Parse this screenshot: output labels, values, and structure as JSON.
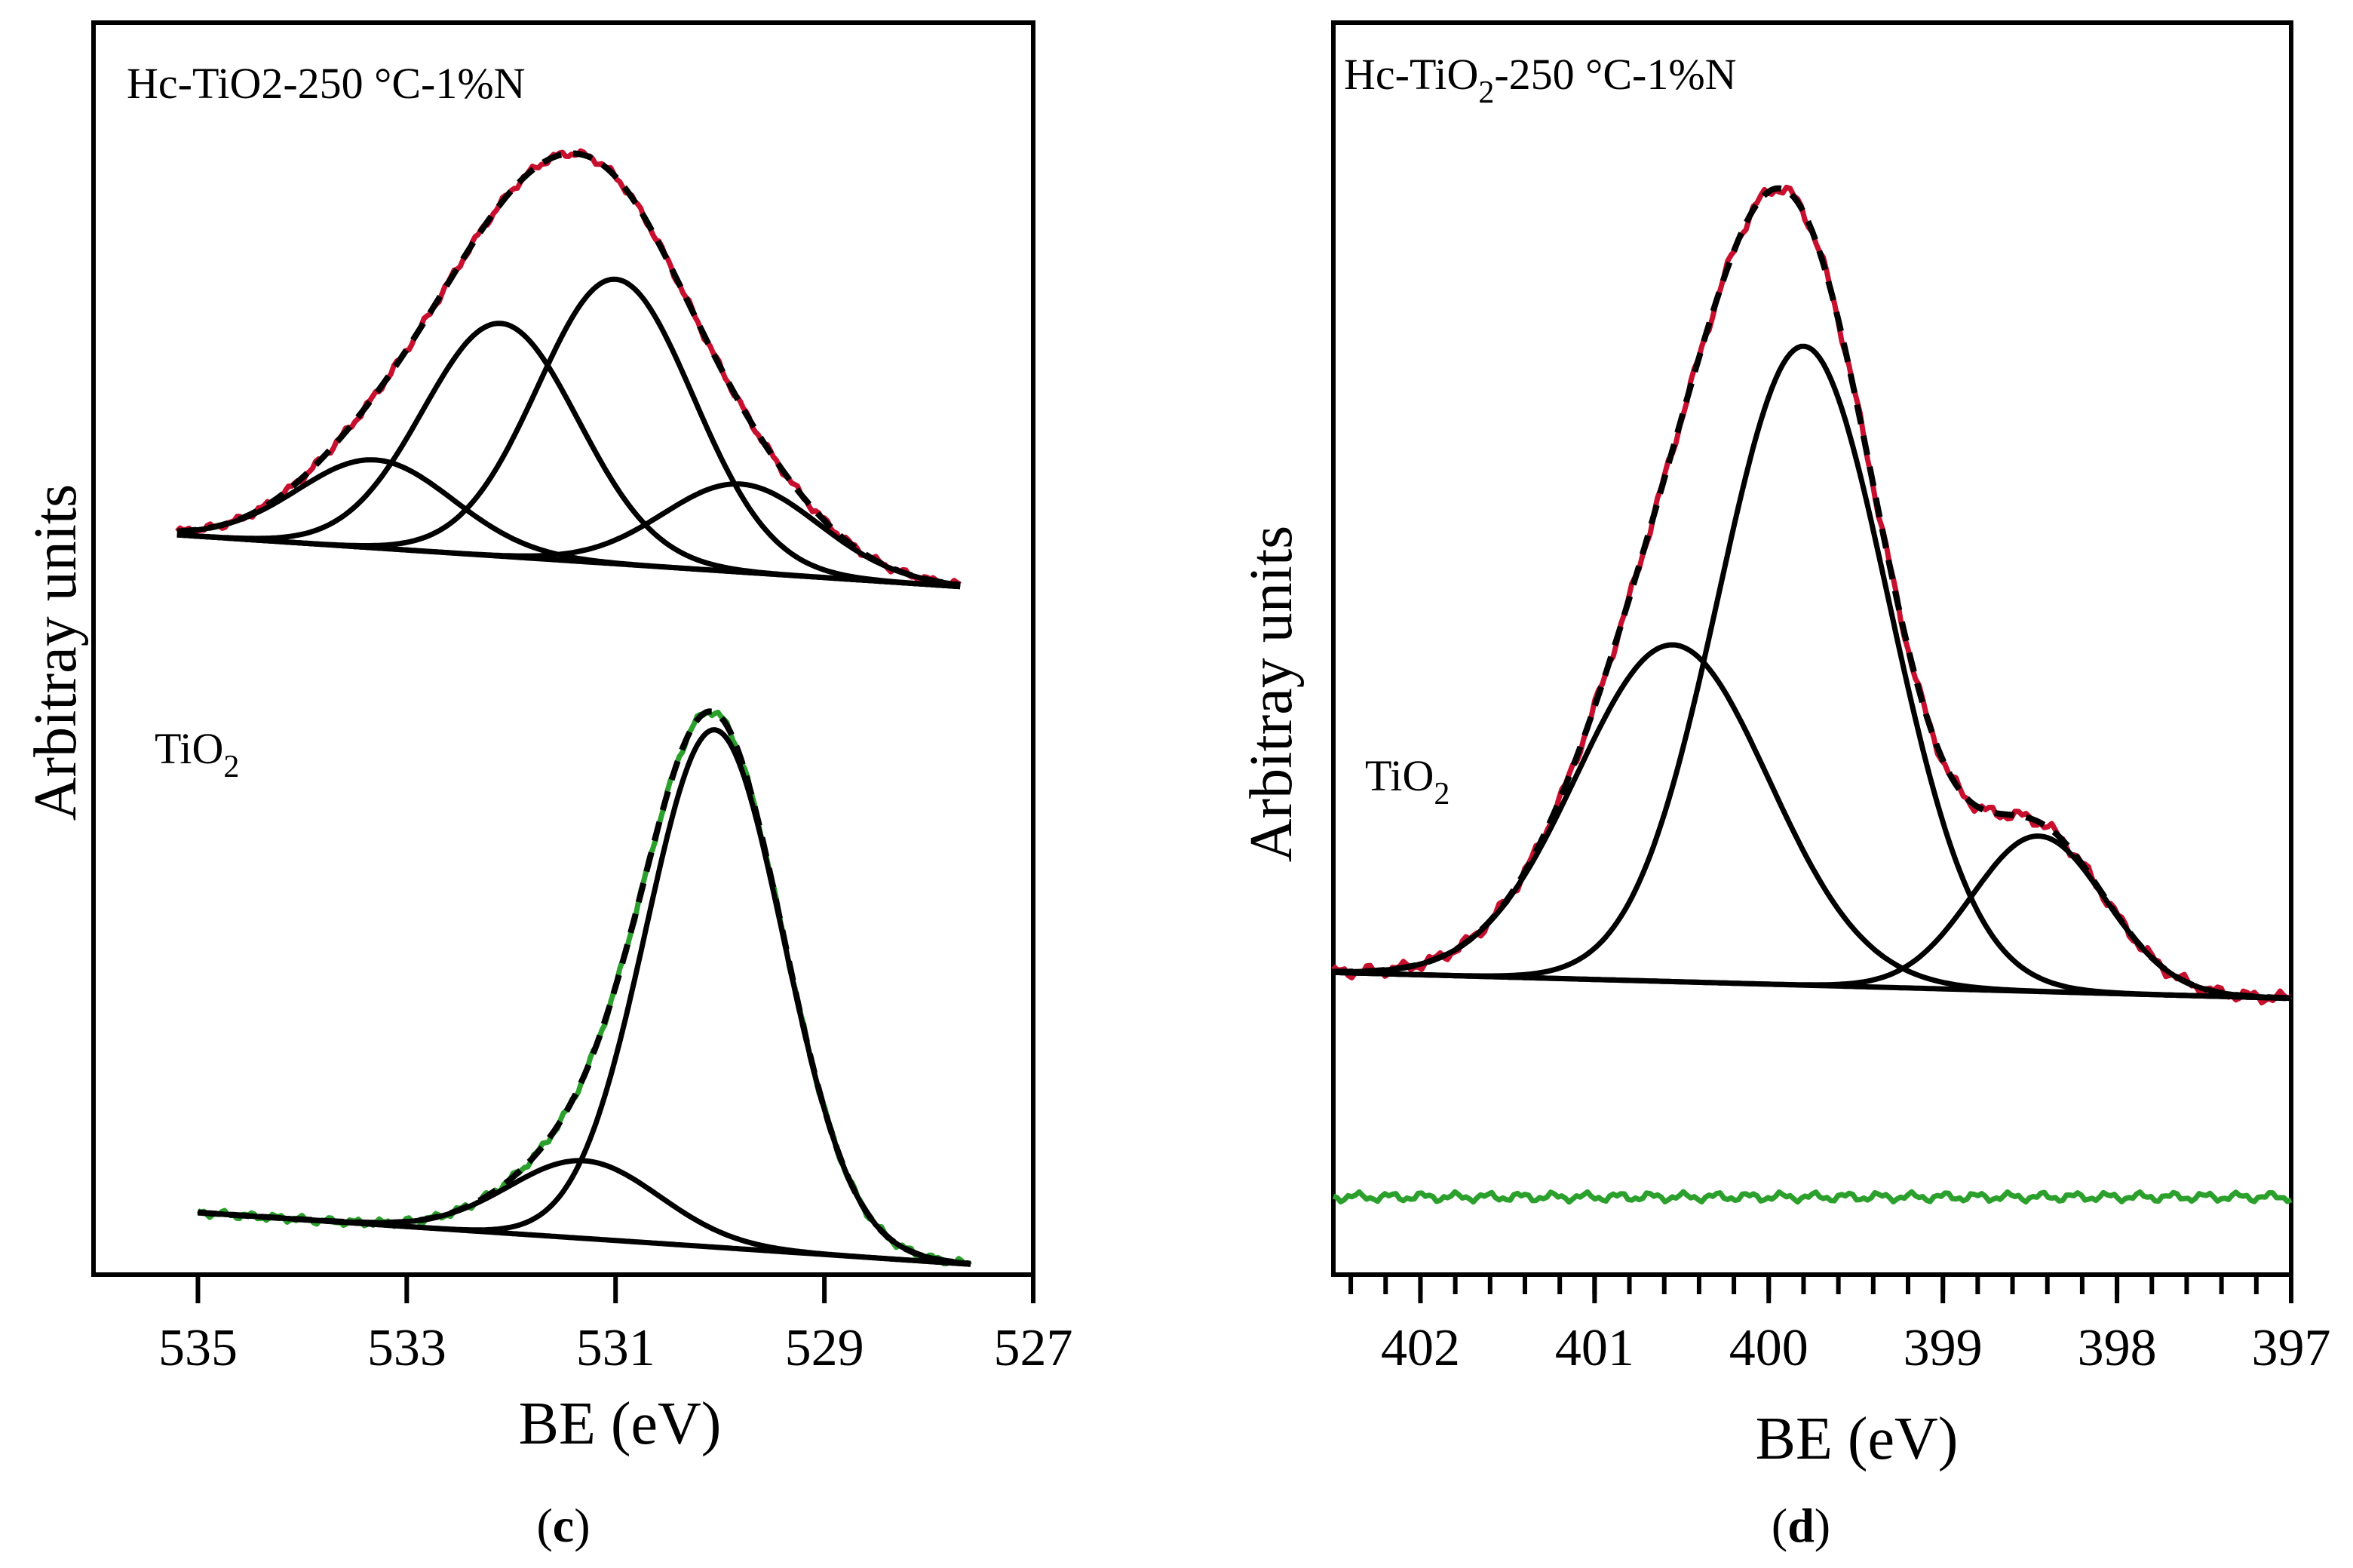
{
  "chart_data": [
    {
      "type": "line",
      "panel_label": "c",
      "xlabel": "BE (eV)",
      "ylabel": "Arbitray units",
      "xlim": [
        536,
        527
      ],
      "xticks": [
        535,
        533,
        531,
        529,
        527
      ],
      "ylim": [
        -0.12,
        2.3
      ],
      "yticks_shown": false,
      "samples": [
        {
          "name": "Hc-TiO2-250 °C-1%N",
          "label_main": "Hc-TiO2-250 °C-1%N",
          "series_role": "measured spectrum",
          "color": "#c8102e",
          "x_range": [
            535.2,
            527.7
          ],
          "baseline": {
            "x_start": 535.2,
            "y_start": 1.31,
            "x_end": 527.7,
            "y_end": 1.21
          },
          "components": [
            {
              "name": "component 1",
              "center": 533.3,
              "fwhm": 1.75,
              "height": 0.17
            },
            {
              "name": "component 2",
              "center": 532.1,
              "fwhm": 1.75,
              "height": 0.45
            },
            {
              "name": "component 3",
              "center": 531.0,
              "fwhm": 1.75,
              "height": 0.55
            },
            {
              "name": "component 4",
              "center": 529.8,
              "fwhm": 1.75,
              "height": 0.17
            }
          ],
          "envelope_peak": {
            "x": 531.3,
            "y": 2.14
          }
        },
        {
          "name": "TiO2",
          "label_main": "TiO",
          "label_sub": "2",
          "series_role": "measured spectrum",
          "color": "#2ca02c",
          "x_range": [
            535.0,
            527.6
          ],
          "baseline": {
            "x_start": 535.0,
            "y_start": 0.0,
            "x_end": 527.6,
            "y_end": -0.1
          },
          "components": [
            {
              "name": "component 1",
              "center": 531.3,
              "fwhm": 1.7,
              "height": 0.15
            },
            {
              "name": "component 2",
              "center": 530.05,
              "fwhm": 1.55,
              "height": 1.0
            }
          ],
          "envelope_peak": {
            "x": 530.05,
            "y": 0.99
          }
        }
      ]
    },
    {
      "type": "line",
      "panel_label": "d",
      "xlabel": "BE (eV)",
      "ylabel": "Arbitray units",
      "xlim": [
        402.5,
        397
      ],
      "xticks": [
        402,
        401,
        400,
        399,
        398,
        397
      ],
      "minor_tick_step": 0.2,
      "ylim": [
        -0.35,
        1.1
      ],
      "yticks_shown": false,
      "samples": [
        {
          "name": "Hc-TiO2-250 °C-1%N",
          "label_main": "Hc-TiO",
          "label_sub": "2",
          "label_rest": "-250 °C-1%N",
          "series_role": "measured spectrum",
          "color": "#c8102e",
          "x_range": [
            402.5,
            397.0
          ],
          "baseline": {
            "x_start": 402.5,
            "y_start": 0.0,
            "x_end": 397.0,
            "y_end": -0.03
          },
          "components": [
            {
              "name": "component 1",
              "center": 400.55,
              "fwhm": 1.3,
              "height": 0.39
            },
            {
              "name": "component 2",
              "center": 399.8,
              "fwhm": 1.15,
              "height": 0.74
            },
            {
              "name": "component 3",
              "center": 398.45,
              "fwhm": 0.9,
              "height": 0.18
            }
          ],
          "envelope_peak": {
            "x": 400.0,
            "y": 1.0
          }
        },
        {
          "name": "TiO2",
          "label_main": "TiO",
          "label_sub": "2",
          "series_role": "measured spectrum (flat, no N 1s signal)",
          "color": "#2ca02c",
          "x_range": [
            402.5,
            397.0
          ],
          "level": -0.26,
          "components": []
        }
      ]
    }
  ]
}
